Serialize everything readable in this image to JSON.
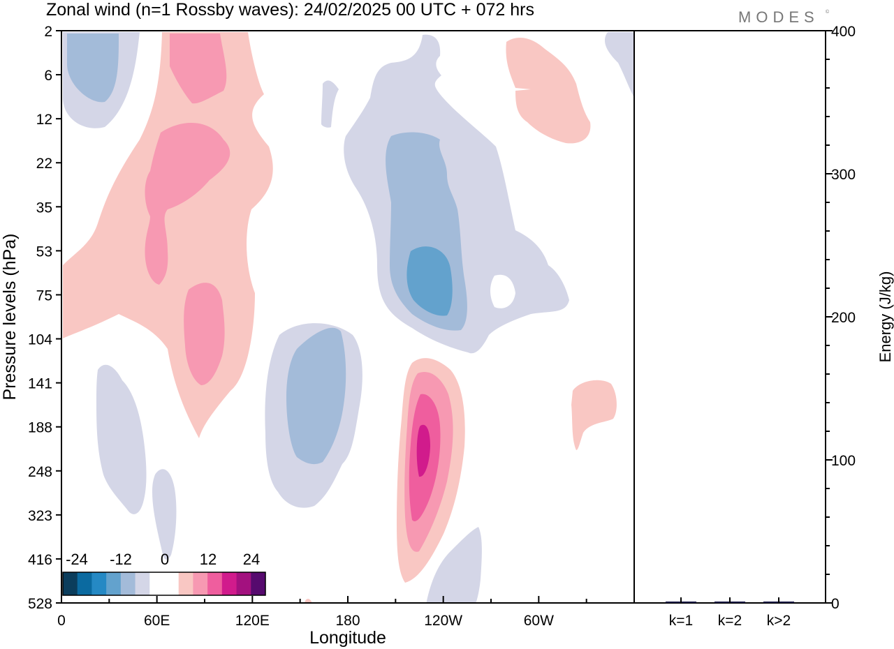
{
  "title": "Zonal wind (n=1 Rossby waves):  24/02/2025  00 UTC  + 072 hrs",
  "logo": "MODES",
  "chart_data": [
    {
      "type": "heatmap",
      "title": "Zonal wind (n=1 Rossby waves):  24/02/2025  00 UTC  + 072 hrs",
      "xlabel": "Longitude",
      "ylabel": "Pressure levels (hPa)",
      "x_ticks": [
        "0",
        "60E",
        "120E",
        "180",
        "120W",
        "60W"
      ],
      "y_ticks": [
        "2",
        "6",
        "12",
        "22",
        "35",
        "53",
        "75",
        "104",
        "141",
        "188",
        "248",
        "323",
        "416",
        "528"
      ],
      "colorbar": {
        "labels": [
          "-24",
          "-12",
          "0",
          "12",
          "24"
        ],
        "colors": [
          "#0b3d5c",
          "#0b6aa0",
          "#2589c4",
          "#63a2cd",
          "#a3bbd9",
          "#d4d6e7",
          "#ffffff",
          "#ffffff",
          "#f9c7c3",
          "#f799b2",
          "#ef5e9e",
          "#d11b8c",
          "#a3117f",
          "#560a6e"
        ]
      },
      "features": [
        {
          "sign": "negative",
          "peak": -8,
          "lon": "20E",
          "level_hpa": 4
        },
        {
          "sign": "positive",
          "peak": 8,
          "lon": "55E",
          "level_hpa": 5
        },
        {
          "sign": "positive",
          "peak": 8,
          "lon": "55E",
          "level_hpa": 25
        },
        {
          "sign": "positive",
          "peak": 8,
          "lon": "85E",
          "level_hpa": 110
        },
        {
          "sign": "negative",
          "peak": -12,
          "lon": "130W",
          "level_hpa": 60
        },
        {
          "sign": "negative",
          "peak": -8,
          "lon": "165E",
          "level_hpa": 165
        },
        {
          "sign": "positive",
          "peak": 16,
          "lon": "125W",
          "level_hpa": 240
        },
        {
          "sign": "positive",
          "peak": 4,
          "lon": "50W",
          "level_hpa": 8
        },
        {
          "sign": "positive",
          "peak": 4,
          "lon": "25W",
          "level_hpa": 150
        }
      ]
    },
    {
      "type": "bar",
      "title": "",
      "ylabel": "Energy (J/kg)",
      "categories": [
        "k=1",
        "k=2",
        "k>2"
      ],
      "values": [
        0.6,
        0.3,
        0.8
      ],
      "ylim": [
        0,
        400
      ],
      "y_ticks": [
        "0",
        "100",
        "200",
        "300",
        "400"
      ],
      "colors": [
        "#101040",
        "#101040",
        "#101040"
      ]
    }
  ]
}
